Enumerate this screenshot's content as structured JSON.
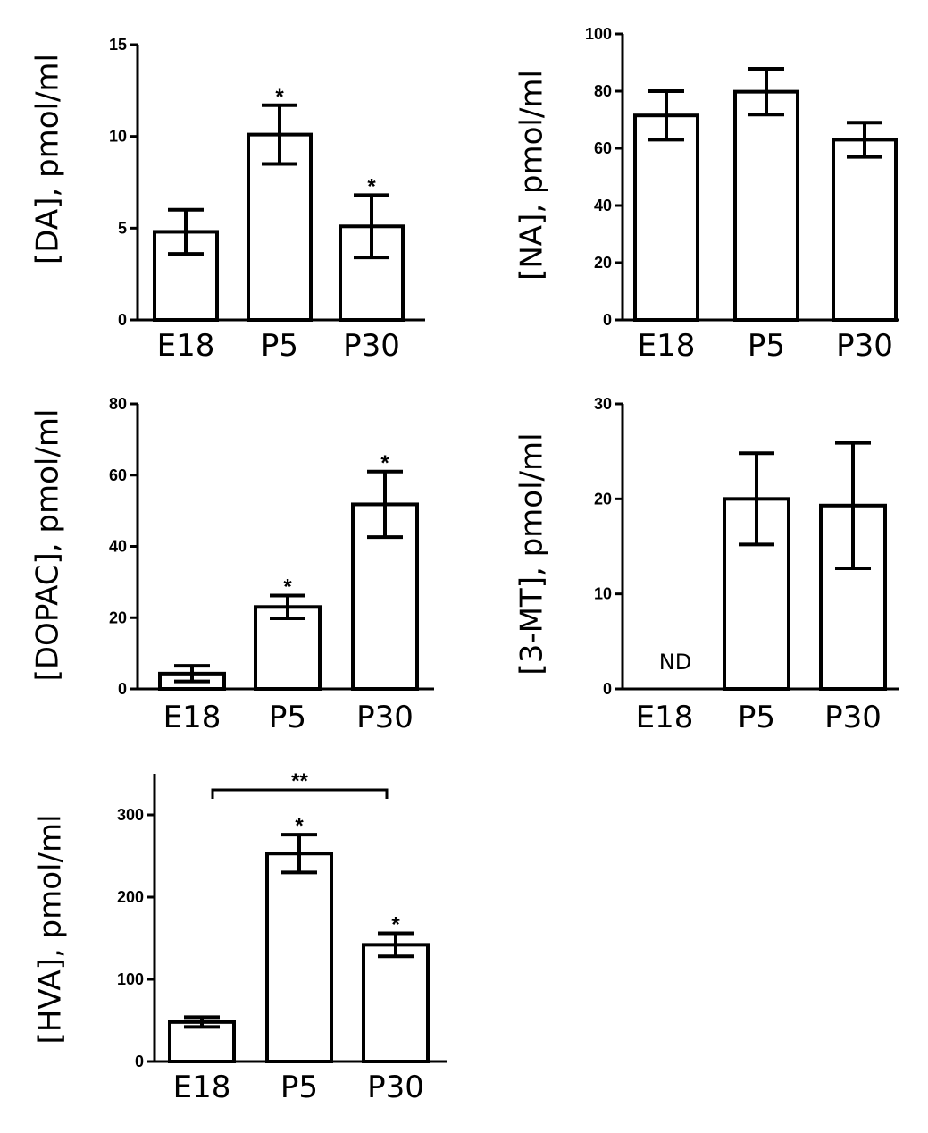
{
  "chart_data": [
    {
      "type": "bar",
      "ylabel": "[DA], pmol/ml",
      "categories": [
        "E18",
        "P5",
        "P30"
      ],
      "values": [
        4.8,
        10.1,
        5.1
      ],
      "errors": [
        1.2,
        1.6,
        1.7
      ],
      "ylim": [
        0,
        15
      ],
      "yticks": [
        0,
        5,
        10,
        15
      ],
      "annotations": [
        "",
        "*",
        "*"
      ]
    },
    {
      "type": "bar",
      "ylabel": "[NA], pmol/ml",
      "categories": [
        "E18",
        "P5",
        "P30"
      ],
      "values": [
        71.5,
        79.8,
        63.0
      ],
      "errors": [
        8.5,
        8.0,
        6.0
      ],
      "ylim": [
        0,
        100
      ],
      "yticks": [
        0,
        20,
        40,
        60,
        80,
        100
      ],
      "annotations": [
        "",
        "",
        ""
      ]
    },
    {
      "type": "bar",
      "ylabel": "[DOPAC], pmol/ml",
      "categories": [
        "E18",
        "P5",
        "P30"
      ],
      "values": [
        4.3,
        23.0,
        51.8
      ],
      "errors": [
        2.2,
        3.2,
        9.2
      ],
      "ylim": [
        0,
        80
      ],
      "yticks": [
        0,
        20,
        40,
        60,
        80
      ],
      "annotations": [
        "",
        "*",
        "*"
      ]
    },
    {
      "type": "bar",
      "ylabel": "[3-MT], pmol/ml",
      "categories": [
        "E18",
        "P5",
        "P30"
      ],
      "values": [
        null,
        20.0,
        19.3
      ],
      "errors": [
        null,
        4.8,
        6.6
      ],
      "ylim": [
        0,
        30
      ],
      "yticks": [
        0,
        10,
        20,
        30
      ],
      "annotations": [
        "",
        "",
        ""
      ],
      "nd_label": "ND"
    },
    {
      "type": "bar",
      "ylabel": "[HVA], pmol/ml",
      "categories": [
        "E18",
        "P5",
        "P30"
      ],
      "values": [
        48,
        253,
        142
      ],
      "errors": [
        6,
        23,
        14
      ],
      "ylim": [
        0,
        350
      ],
      "yticks": [
        0,
        100,
        200,
        300
      ],
      "annotations": [
        "",
        "*",
        "*"
      ],
      "bracket_label": "**"
    }
  ]
}
